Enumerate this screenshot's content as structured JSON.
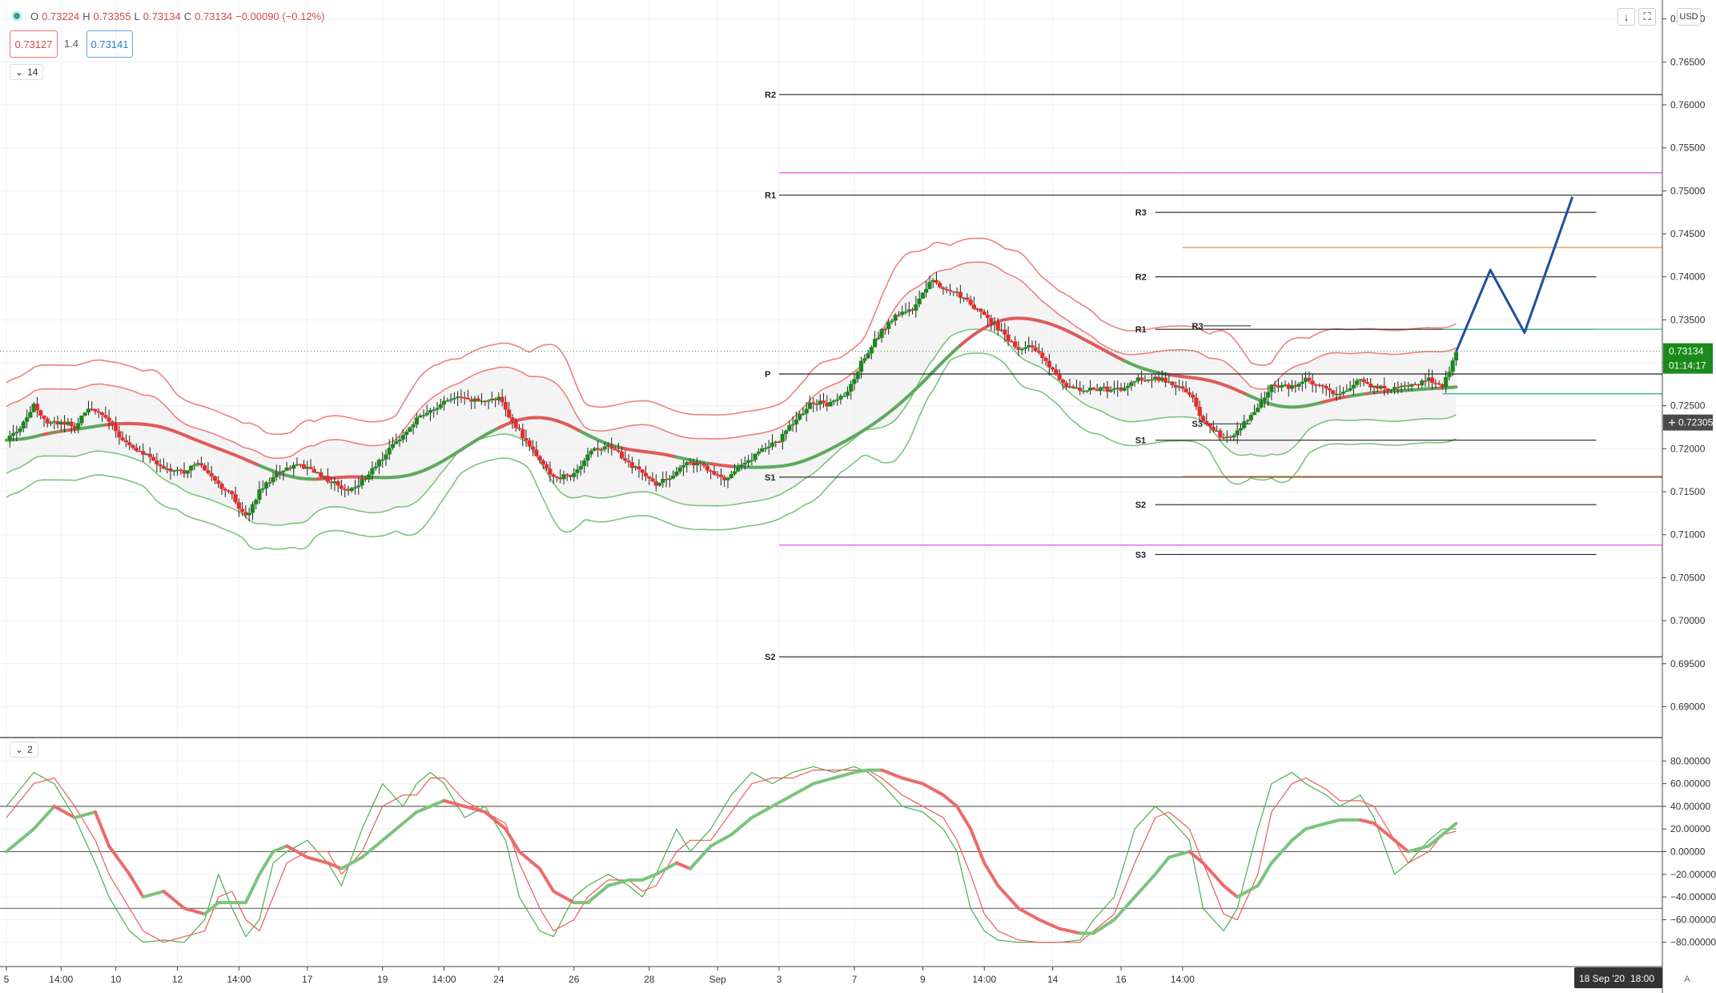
{
  "header": {
    "open_label": "O",
    "open": "0.73224",
    "high_label": "H",
    "high": "0.73355",
    "low_label": "L",
    "low": "0.73134",
    "close_label": "C",
    "close": "0.73134",
    "change": "−0.00090 (−0.12%)"
  },
  "quote": {
    "bid": "0.73127",
    "spread": "1.4",
    "ask": "0.73141"
  },
  "indicators": {
    "bollinger_collapse": "14",
    "oscillator_collapse": "2"
  },
  "toolbar": {
    "currency": "USD",
    "auto_label": "A"
  },
  "price_axis": {
    "ticks": [
      "0.77000",
      "0.76500",
      "0.76000",
      "0.75500",
      "0.75000",
      "0.74500",
      "0.74000",
      "0.73500",
      "0.73000",
      "0.72500",
      "0.72000",
      "0.71500",
      "0.71000",
      "0.70500",
      "0.70000",
      "0.69500",
      "0.69000"
    ],
    "last_price": "0.73134",
    "countdown": "01:14:17",
    "crosshair_price": "0.72305"
  },
  "oscillator_axis": {
    "ticks": [
      "80.00000",
      "60.00000",
      "40.00000",
      "20.00000",
      "0.00000",
      "−20.00000",
      "−40.00000",
      "−60.00000",
      "−80.00000"
    ]
  },
  "time_axis": {
    "labels": [
      "5",
      "14:00",
      "10",
      "12",
      "14:00",
      "17",
      "19",
      "14:00",
      "24",
      "26",
      "28",
      "Sep",
      "3",
      "7",
      "9",
      "14:00",
      "14",
      "16",
      "14:00"
    ],
    "crosshair_time": "18 Sep '20",
    "crosshair_hour": "18:00"
  },
  "pivot_labels": {
    "monthly": [
      "R2",
      "R1",
      "P",
      "S1",
      "S2"
    ],
    "weekly": [
      "R3",
      "R2",
      "R1",
      "S1",
      "S2",
      "S3"
    ],
    "daily": [
      "R3",
      "S3"
    ]
  },
  "colors": {
    "up": "#1b8a1b",
    "down": "#ee2a2a",
    "upper_band": "#f08080",
    "lower_band": "#7dc47d",
    "projection": "#1f4e9c",
    "magenta": "#e36de3",
    "orange": "#f2a65a"
  },
  "chart_data": {
    "type": "candlestick",
    "price_range": [
      0.6865,
      0.7722
    ],
    "oscillator_range": [
      -100,
      100
    ],
    "oscillator_levels": [
      40,
      0,
      -50
    ],
    "close_path": [
      [
        0,
        0.721
      ],
      [
        5,
        0.723
      ],
      [
        8,
        0.725
      ],
      [
        12,
        0.7228
      ],
      [
        16,
        0.7232
      ],
      [
        20,
        0.7225
      ],
      [
        24,
        0.7248
      ],
      [
        30,
        0.7232
      ],
      [
        34,
        0.7208
      ],
      [
        40,
        0.7195
      ],
      [
        46,
        0.7175
      ],
      [
        52,
        0.7172
      ],
      [
        56,
        0.7185
      ],
      [
        60,
        0.7165
      ],
      [
        66,
        0.7145
      ],
      [
        70,
        0.712
      ],
      [
        74,
        0.715
      ],
      [
        80,
        0.7175
      ],
      [
        86,
        0.718
      ],
      [
        90,
        0.7172
      ],
      [
        96,
        0.716
      ],
      [
        100,
        0.715
      ],
      [
        106,
        0.717
      ],
      [
        110,
        0.719
      ],
      [
        116,
        0.7215
      ],
      [
        120,
        0.7235
      ],
      [
        126,
        0.725
      ],
      [
        132,
        0.7262
      ],
      [
        138,
        0.7255
      ],
      [
        144,
        0.7258
      ],
      [
        150,
        0.722
      ],
      [
        156,
        0.7185
      ],
      [
        160,
        0.7165
      ],
      [
        166,
        0.717
      ],
      [
        170,
        0.7195
      ],
      [
        176,
        0.7205
      ],
      [
        180,
        0.719
      ],
      [
        186,
        0.717
      ],
      [
        190,
        0.716
      ],
      [
        196,
        0.7172
      ],
      [
        200,
        0.7185
      ],
      [
        206,
        0.7175
      ],
      [
        210,
        0.7165
      ],
      [
        216,
        0.7182
      ],
      [
        220,
        0.7195
      ],
      [
        226,
        0.721
      ],
      [
        230,
        0.723
      ],
      [
        236,
        0.7255
      ],
      [
        240,
        0.7252
      ],
      [
        246,
        0.7265
      ],
      [
        250,
        0.73
      ],
      [
        256,
        0.7338
      ],
      [
        260,
        0.7355
      ],
      [
        266,
        0.7365
      ],
      [
        270,
        0.7395
      ],
      [
        276,
        0.7385
      ],
      [
        280,
        0.7375
      ],
      [
        286,
        0.7355
      ],
      [
        290,
        0.734
      ],
      [
        296,
        0.7315
      ],
      [
        300,
        0.732
      ],
      [
        306,
        0.729
      ],
      [
        310,
        0.727
      ],
      [
        316,
        0.7268
      ],
      [
        320,
        0.727
      ],
      [
        326,
        0.7268
      ],
      [
        330,
        0.728
      ],
      [
        336,
        0.7282
      ],
      [
        340,
        0.7278
      ],
      [
        346,
        0.7265
      ],
      [
        350,
        0.7232
      ],
      [
        356,
        0.7212
      ],
      [
        360,
        0.722
      ],
      [
        366,
        0.725
      ],
      [
        370,
        0.7275
      ],
      [
        376,
        0.7272
      ],
      [
        380,
        0.728
      ],
      [
        386,
        0.7268
      ],
      [
        390,
        0.7262
      ],
      [
        396,
        0.728
      ],
      [
        400,
        0.7272
      ],
      [
        406,
        0.727
      ],
      [
        410,
        0.7272
      ],
      [
        416,
        0.728
      ],
      [
        420,
        0.727
      ],
      [
        424,
        0.7313
      ]
    ],
    "pivots": {
      "monthly": [
        {
          "name": "R2",
          "value": 0.7612
        },
        {
          "name": "R1",
          "value": 0.7495
        },
        {
          "name": "P",
          "value": 0.7287
        },
        {
          "name": "S1",
          "value": 0.7167
        },
        {
          "name": "S2",
          "value": 0.6958
        }
      ],
      "weekly": [
        {
          "name": "R3",
          "value": 0.7475
        },
        {
          "name": "R2",
          "value": 0.74
        },
        {
          "name": "R1",
          "value": 0.7339
        },
        {
          "name": "S1",
          "value": 0.721
        },
        {
          "name": "S2",
          "value": 0.7135
        },
        {
          "name": "S3",
          "value": 0.7077
        }
      ],
      "daily": [
        {
          "name": "R3",
          "value": 0.7343
        },
        {
          "name": "S3",
          "value": 0.7229
        }
      ],
      "magenta": [
        0.7521,
        0.7088
      ],
      "orange": [
        0.7434,
        0.7168
      ],
      "green": [
        0.7339,
        0.7264
      ]
    },
    "projection": [
      [
        424,
        0.7313
      ],
      [
        434,
        0.7408
      ],
      [
        444,
        0.7335
      ],
      [
        458,
        0.7493
      ]
    ],
    "oscillator": {
      "fast_points": [
        [
          0,
          40
        ],
        [
          8,
          70
        ],
        [
          14,
          60
        ],
        [
          20,
          30
        ],
        [
          26,
          -10
        ],
        [
          30,
          -40
        ],
        [
          36,
          -70
        ],
        [
          40,
          -80
        ],
        [
          46,
          -78
        ],
        [
          52,
          -80
        ],
        [
          58,
          -60
        ],
        [
          62,
          -20
        ],
        [
          66,
          -50
        ],
        [
          70,
          -75
        ],
        [
          74,
          -60
        ],
        [
          78,
          -10
        ],
        [
          82,
          0
        ],
        [
          88,
          10
        ],
        [
          94,
          -10
        ],
        [
          98,
          -30
        ],
        [
          104,
          20
        ],
        [
          110,
          60
        ],
        [
          116,
          40
        ],
        [
          120,
          60
        ],
        [
          124,
          70
        ],
        [
          128,
          60
        ],
        [
          134,
          30
        ],
        [
          140,
          40
        ],
        [
          146,
          10
        ],
        [
          150,
          -40
        ],
        [
          156,
          -70
        ],
        [
          160,
          -75
        ],
        [
          166,
          -40
        ],
        [
          170,
          -30
        ],
        [
          176,
          -20
        ],
        [
          182,
          -30
        ],
        [
          186,
          -40
        ],
        [
          190,
          -20
        ],
        [
          196,
          20
        ],
        [
          200,
          0
        ],
        [
          206,
          20
        ],
        [
          212,
          50
        ],
        [
          218,
          70
        ],
        [
          224,
          60
        ],
        [
          230,
          70
        ],
        [
          236,
          75
        ],
        [
          242,
          70
        ],
        [
          248,
          75
        ],
        [
          252,
          70
        ],
        [
          256,
          60
        ],
        [
          262,
          40
        ],
        [
          268,
          35
        ],
        [
          274,
          20
        ],
        [
          278,
          0
        ],
        [
          282,
          -50
        ],
        [
          286,
          -70
        ],
        [
          290,
          -78
        ],
        [
          296,
          -80
        ],
        [
          302,
          -80
        ],
        [
          308,
          -80
        ],
        [
          314,
          -78
        ],
        [
          318,
          -60
        ],
        [
          324,
          -40
        ],
        [
          330,
          20
        ],
        [
          336,
          40
        ],
        [
          340,
          30
        ],
        [
          346,
          10
        ],
        [
          350,
          -50
        ],
        [
          356,
          -70
        ],
        [
          360,
          -50
        ],
        [
          366,
          20
        ],
        [
          370,
          60
        ],
        [
          376,
          70
        ],
        [
          380,
          60
        ],
        [
          386,
          50
        ],
        [
          390,
          40
        ],
        [
          396,
          50
        ],
        [
          400,
          30
        ],
        [
          406,
          -20
        ],
        [
          410,
          -10
        ],
        [
          416,
          10
        ],
        [
          420,
          20
        ],
        [
          424,
          20
        ]
      ],
      "slow_points": [
        [
          0,
          30
        ],
        [
          8,
          60
        ],
        [
          14,
          65
        ],
        [
          20,
          40
        ],
        [
          26,
          10
        ],
        [
          30,
          -20
        ],
        [
          36,
          -50
        ],
        [
          40,
          -70
        ],
        [
          46,
          -80
        ],
        [
          52,
          -75
        ],
        [
          58,
          -70
        ],
        [
          62,
          -40
        ],
        [
          66,
          -35
        ],
        [
          70,
          -60
        ],
        [
          74,
          -70
        ],
        [
          78,
          -40
        ],
        [
          82,
          -10
        ],
        [
          88,
          0
        ],
        [
          94,
          0
        ],
        [
          98,
          -20
        ],
        [
          104,
          0
        ],
        [
          110,
          40
        ],
        [
          116,
          50
        ],
        [
          120,
          50
        ],
        [
          124,
          65
        ],
        [
          128,
          65
        ],
        [
          134,
          45
        ],
        [
          140,
          35
        ],
        [
          146,
          25
        ],
        [
          150,
          -10
        ],
        [
          156,
          -50
        ],
        [
          160,
          -70
        ],
        [
          166,
          -60
        ],
        [
          170,
          -40
        ],
        [
          176,
          -25
        ],
        [
          182,
          -25
        ],
        [
          186,
          -35
        ],
        [
          190,
          -30
        ],
        [
          196,
          0
        ],
        [
          200,
          10
        ],
        [
          206,
          10
        ],
        [
          212,
          35
        ],
        [
          218,
          60
        ],
        [
          224,
          65
        ],
        [
          230,
          65
        ],
        [
          236,
          72
        ],
        [
          242,
          72
        ],
        [
          248,
          72
        ],
        [
          252,
          72
        ],
        [
          256,
          65
        ],
        [
          262,
          50
        ],
        [
          268,
          40
        ],
        [
          274,
          30
        ],
        [
          278,
          10
        ],
        [
          282,
          -20
        ],
        [
          286,
          -55
        ],
        [
          290,
          -70
        ],
        [
          296,
          -78
        ],
        [
          302,
          -80
        ],
        [
          308,
          -80
        ],
        [
          314,
          -80
        ],
        [
          318,
          -70
        ],
        [
          324,
          -55
        ],
        [
          330,
          -10
        ],
        [
          336,
          30
        ],
        [
          340,
          35
        ],
        [
          346,
          20
        ],
        [
          350,
          -10
        ],
        [
          356,
          -55
        ],
        [
          360,
          -60
        ],
        [
          366,
          -20
        ],
        [
          370,
          35
        ],
        [
          376,
          60
        ],
        [
          380,
          65
        ],
        [
          386,
          55
        ],
        [
          390,
          45
        ],
        [
          396,
          45
        ],
        [
          400,
          40
        ],
        [
          406,
          10
        ],
        [
          410,
          -10
        ],
        [
          416,
          0
        ],
        [
          420,
          15
        ],
        [
          424,
          18
        ]
      ],
      "signal_points": [
        [
          0,
          0
        ],
        [
          8,
          20
        ],
        [
          14,
          40
        ],
        [
          20,
          30
        ],
        [
          26,
          35
        ],
        [
          30,
          5
        ],
        [
          36,
          -20
        ],
        [
          40,
          -40
        ],
        [
          46,
          -35
        ],
        [
          52,
          -50
        ],
        [
          58,
          -55
        ],
        [
          62,
          -45
        ],
        [
          66,
          -45
        ],
        [
          70,
          -45
        ],
        [
          74,
          -20
        ],
        [
          78,
          0
        ],
        [
          82,
          5
        ],
        [
          88,
          -5
        ],
        [
          94,
          -10
        ],
        [
          98,
          -15
        ],
        [
          104,
          -5
        ],
        [
          110,
          10
        ],
        [
          116,
          25
        ],
        [
          120,
          35
        ],
        [
          124,
          40
        ],
        [
          128,
          45
        ],
        [
          134,
          40
        ],
        [
          140,
          35
        ],
        [
          146,
          20
        ],
        [
          150,
          0
        ],
        [
          156,
          -15
        ],
        [
          160,
          -35
        ],
        [
          166,
          -45
        ],
        [
          170,
          -45
        ],
        [
          176,
          -30
        ],
        [
          182,
          -25
        ],
        [
          186,
          -25
        ],
        [
          190,
          -20
        ],
        [
          196,
          -10
        ],
        [
          200,
          -15
        ],
        [
          206,
          5
        ],
        [
          212,
          15
        ],
        [
          218,
          30
        ],
        [
          224,
          40
        ],
        [
          230,
          50
        ],
        [
          236,
          60
        ],
        [
          242,
          65
        ],
        [
          248,
          70
        ],
        [
          252,
          72
        ],
        [
          256,
          72
        ],
        [
          262,
          65
        ],
        [
          268,
          60
        ],
        [
          274,
          50
        ],
        [
          278,
          40
        ],
        [
          282,
          20
        ],
        [
          286,
          -10
        ],
        [
          290,
          -30
        ],
        [
          296,
          -50
        ],
        [
          302,
          -60
        ],
        [
          308,
          -68
        ],
        [
          314,
          -72
        ],
        [
          318,
          -72
        ],
        [
          324,
          -60
        ],
        [
          330,
          -40
        ],
        [
          336,
          -20
        ],
        [
          340,
          -5
        ],
        [
          346,
          0
        ],
        [
          350,
          -10
        ],
        [
          356,
          -30
        ],
        [
          360,
          -40
        ],
        [
          366,
          -30
        ],
        [
          370,
          -10
        ],
        [
          376,
          10
        ],
        [
          380,
          20
        ],
        [
          386,
          25
        ],
        [
          390,
          28
        ],
        [
          396,
          28
        ],
        [
          400,
          25
        ],
        [
          406,
          10
        ],
        [
          410,
          0
        ],
        [
          416,
          5
        ],
        [
          420,
          15
        ],
        [
          424,
          25
        ]
      ]
    }
  }
}
